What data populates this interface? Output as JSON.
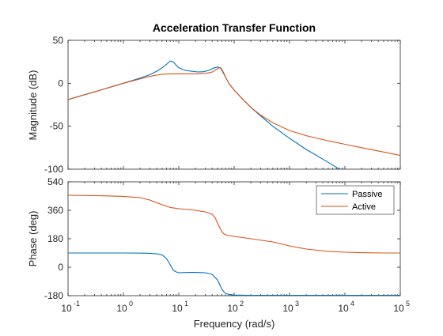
{
  "chart_data": {
    "type": "line",
    "title": "Acceleration Transfer Function",
    "xlabel": "Frequency  (rad/s)",
    "x_scale": "log",
    "xlim": [
      0.1,
      100000
    ],
    "x_ticks": [
      "10",
      "10",
      "10",
      "10",
      "10",
      "10",
      "10"
    ],
    "x_tick_exponents": [
      "-1",
      "0",
      "1",
      "2",
      "3",
      "4",
      "5"
    ],
    "grid": false,
    "legend_position": "top-right",
    "colors": {
      "Passive": "#0072BD",
      "Active": "#D95319"
    },
    "subplots": [
      {
        "name": "magnitude",
        "ylabel": "Magnitude (dB)",
        "ylim": [
          -100,
          50
        ],
        "y_ticks": [
          "50",
          "0",
          "-50",
          "-100"
        ],
        "series": [
          {
            "name": "Passive",
            "x": [
              0.1,
              0.3,
              1,
              2,
              3,
              4,
              5,
              6,
              7,
              8,
              9,
              10,
              13,
              17,
              22,
              28,
              35,
              42,
              50,
              56,
              60,
              65,
              70,
              80,
              100,
              150,
              200,
              300,
              500,
              1000,
              2000,
              5000,
              10000,
              20000,
              30000
            ],
            "values": [
              -19,
              -10,
              0,
              6,
              10,
              14,
              18,
              22,
              26,
              25,
              21,
              18,
              15,
              14,
              13.2,
              13.5,
              15,
              17.5,
              19,
              18,
              15,
              11,
              7,
              0,
              -8,
              -20,
              -28,
              -38,
              -50,
              -64,
              -77,
              -92,
              -104,
              -116,
              -125
            ]
          },
          {
            "name": "Active",
            "x": [
              0.1,
              0.3,
              1,
              2,
              3,
              4,
              5,
              7,
              10,
              15,
              20,
              30,
              40,
              50,
              56,
              60,
              65,
              70,
              80,
              100,
              150,
              200,
              300,
              500,
              1000,
              2000,
              5000,
              10000,
              20000,
              50000,
              100000
            ],
            "values": [
              -19,
              -10,
              0,
              5,
              8,
              9.5,
              10.5,
              11,
              11,
              11,
              11,
              11.5,
              13,
              17,
              18.5,
              16,
              12,
              7,
              0,
              -8,
              -20,
              -28,
              -37,
              -46,
              -55,
              -61,
              -67,
              -71,
              -75,
              -80,
              -84
            ]
          }
        ]
      },
      {
        "name": "phase",
        "ylabel": "Phase (deg)",
        "ylim": [
          -180,
          540
        ],
        "y_ticks": [
          "540",
          "360",
          "180",
          "0",
          "-180"
        ],
        "series": [
          {
            "name": "Passive",
            "x": [
              0.1,
              1,
              2,
              3,
              4,
              5,
              6,
              7,
              8,
              9,
              10,
              15,
              20,
              30,
              40,
              50,
              55,
              60,
              65,
              70,
              80,
              100,
              200,
              1000,
              10000,
              100000
            ],
            "values": [
              90,
              90,
              89,
              88,
              85,
              78,
              55,
              15,
              -20,
              -30,
              -35,
              -33,
              -33,
              -35,
              -45,
              -80,
              -110,
              -140,
              -155,
              -165,
              -172,
              -176,
              -178,
              -178,
              -178,
              -178
            ]
          },
          {
            "name": "Active",
            "x": [
              0.1,
              0.3,
              1,
              2,
              3,
              5,
              7,
              10,
              20,
              30,
              40,
              45,
              50,
              55,
              60,
              65,
              70,
              80,
              100,
              200,
              500,
              1000,
              2000,
              5000,
              10000,
              20000,
              50000,
              100000
            ],
            "values": [
              455,
              453,
              448,
              440,
              425,
              395,
              378,
              370,
              360,
              350,
              335,
              315,
              280,
              250,
              225,
              212,
              205,
              200,
              195,
              180,
              160,
              135,
              115,
              100,
              95,
              92,
              90,
              90
            ]
          }
        ]
      }
    ]
  }
}
